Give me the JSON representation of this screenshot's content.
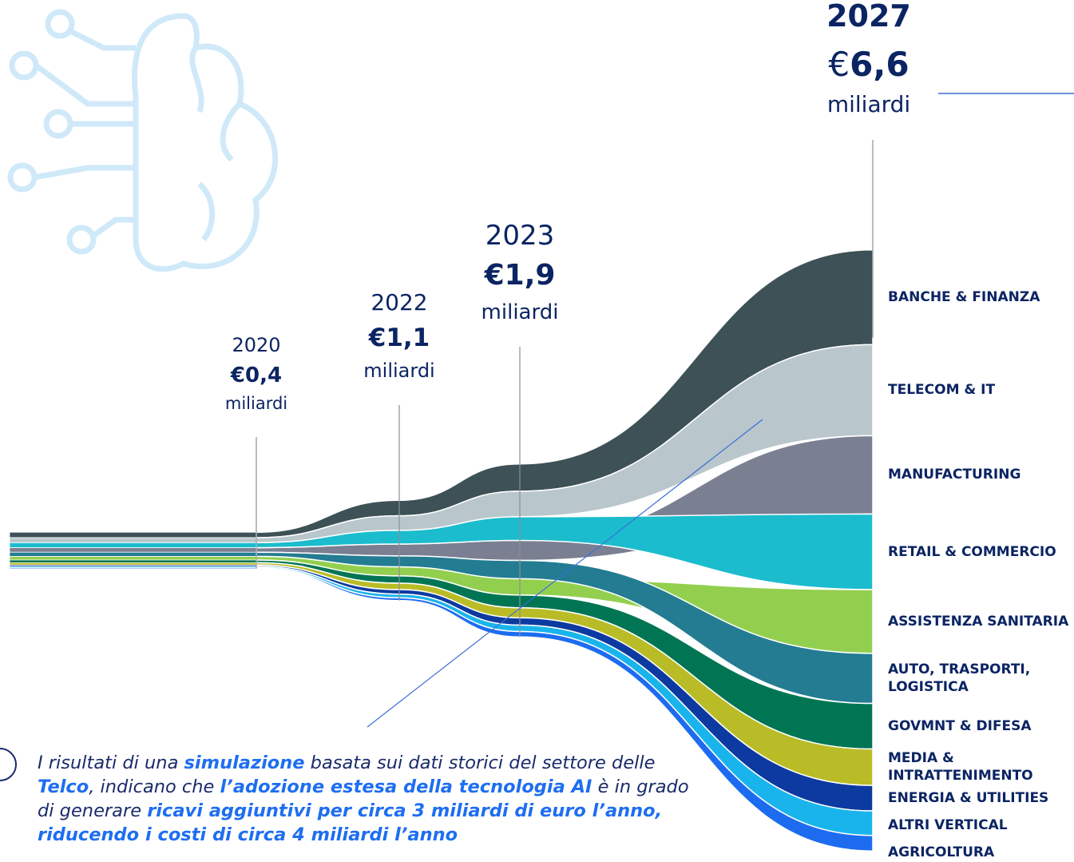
{
  "chart_data": {
    "type": "stream",
    "x": [
      "2020",
      "2022",
      "2023",
      "2027"
    ],
    "currency": "€",
    "totals": [
      0.4,
      1.1,
      1.9,
      6.6
    ],
    "total_labels": [
      "0,4",
      "1,1",
      "1,9",
      "6,6"
    ],
    "unit": "miliardi",
    "series": [
      {
        "name": "BANCHE & FINANZA",
        "color": "#3d5157",
        "values": [
          0.06,
          0.17,
          0.3,
          1.04
        ]
      },
      {
        "name": "TELECOM & IT",
        "color": "#b9c6cc",
        "values": [
          0.055,
          0.16,
          0.28,
          1.0
        ]
      },
      {
        "name": "MANUFACTURING",
        "color": "#7a7f92",
        "values": [
          0.05,
          0.13,
          0.22,
          0.86
        ]
      },
      {
        "name": "RETAIL & COMMERCIO",
        "color": "#1bbccd",
        "values": [
          0.055,
          0.15,
          0.26,
          0.83
        ]
      },
      {
        "name": "ASSISTENZA SANITARIA",
        "color": "#93cf4f",
        "values": [
          0.04,
          0.1,
          0.18,
          0.7
        ]
      },
      {
        "name": "AUTO, TRASPORTI,\nLOGISTICA",
        "color": "#237c92",
        "values": [
          0.045,
          0.12,
          0.2,
          0.55
        ]
      },
      {
        "name": "GOVMNT & DIFESA",
        "color": "#007553",
        "values": [
          0.03,
          0.08,
          0.14,
          0.5
        ]
      },
      {
        "name": "MEDIA & INTRATTENIMENTO",
        "color": "#b9bc27",
        "values": [
          0.025,
          0.07,
          0.11,
          0.4
        ]
      },
      {
        "name": "ENERGIA & UTILITIES",
        "color": "#0c3aa0",
        "values": [
          0.015,
          0.05,
          0.08,
          0.28
        ]
      },
      {
        "name": "ALTRI VERTICAL",
        "color": "#1ab4ec",
        "values": [
          0.015,
          0.04,
          0.07,
          0.27
        ]
      },
      {
        "name": "AGRICOLTURA",
        "color": "#1d6cf0",
        "values": [
          0.01,
          0.03,
          0.06,
          0.17
        ]
      }
    ],
    "annotation": [
      {
        "text": "I risultati di una ",
        "bold": false
      },
      {
        "text": "simulazione",
        "bold": true
      },
      {
        "text": " basata sui dati storici del settore delle ",
        "bold": false
      },
      {
        "text": "Telco",
        "bold": true
      },
      {
        "text": ", indicano che ",
        "bold": false
      },
      {
        "text": "l’adozione estesa della tecnologia AI",
        "bold": true
      },
      {
        "text": " è in grado di generare ",
        "bold": false
      },
      {
        "text": "ricavi aggiuntivi per circa 3 miliardi di euro l’anno, riducendo i costi di circa 4 miliardi l’anno",
        "bold": true
      }
    ]
  }
}
